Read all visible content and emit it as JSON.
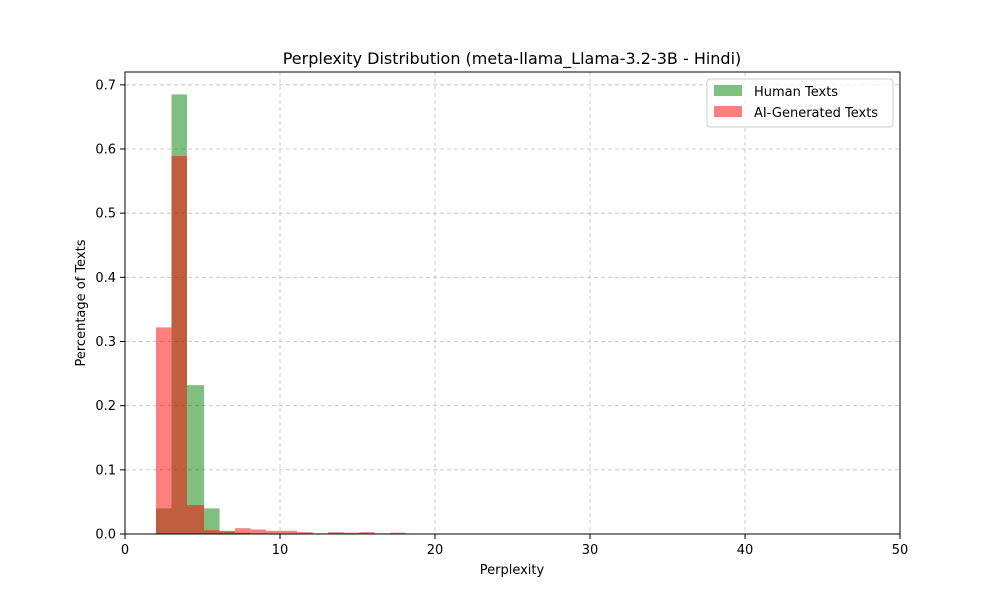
{
  "chart_data": {
    "type": "bar",
    "title": "Perplexity Distribution (meta-llama_Llama-3.2-3B - Hindi)",
    "xlabel": "Perplexity",
    "ylabel": "Percentage of Texts",
    "xlim": [
      0,
      50
    ],
    "ylim": [
      0,
      0.72
    ],
    "xticks": [
      0,
      10,
      20,
      30,
      40,
      50
    ],
    "yticks": [
      0.0,
      0.1,
      0.2,
      0.3,
      0.4,
      0.5,
      0.6,
      0.7
    ],
    "xtick_labels": [
      "0",
      "10",
      "20",
      "30",
      "40",
      "50"
    ],
    "ytick_labels": [
      "0.0",
      "0.1",
      "0.2",
      "0.3",
      "0.4",
      "0.5",
      "0.6",
      "0.7"
    ],
    "grid": true,
    "legend_position": "top-right",
    "series": [
      {
        "name": "Human Texts",
        "color": "#008000",
        "opacity": 0.5,
        "bins": [
          {
            "x0": 2.0,
            "x1": 3.0,
            "value": 0.04
          },
          {
            "x0": 3.0,
            "x1": 4.0,
            "value": 0.685
          },
          {
            "x0": 4.0,
            "x1": 5.1,
            "value": 0.232
          },
          {
            "x0": 5.1,
            "x1": 6.1,
            "value": 0.04
          },
          {
            "x0": 6.1,
            "x1": 7.1,
            "value": 0.005
          },
          {
            "x0": 7.1,
            "x1": 8.1,
            "value": 0.002
          }
        ]
      },
      {
        "name": "AI-Generated Texts",
        "color": "#ff0000",
        "opacity": 0.5,
        "bins": [
          {
            "x0": 2.0,
            "x1": 3.0,
            "value": 0.322
          },
          {
            "x0": 3.0,
            "x1": 4.0,
            "value": 0.589
          },
          {
            "x0": 4.0,
            "x1": 5.1,
            "value": 0.045
          },
          {
            "x0": 5.1,
            "x1": 6.1,
            "value": 0.006
          },
          {
            "x0": 6.1,
            "x1": 7.1,
            "value": 0.004
          },
          {
            "x0": 7.1,
            "x1": 8.1,
            "value": 0.009
          },
          {
            "x0": 8.1,
            "x1": 9.1,
            "value": 0.007
          },
          {
            "x0": 9.1,
            "x1": 10.1,
            "value": 0.005
          },
          {
            "x0": 10.1,
            "x1": 11.1,
            "value": 0.005
          },
          {
            "x0": 11.1,
            "x1": 12.1,
            "value": 0.003
          },
          {
            "x0": 12.1,
            "x1": 13.1,
            "value": 0.001
          },
          {
            "x0": 13.1,
            "x1": 14.1,
            "value": 0.003
          },
          {
            "x0": 14.1,
            "x1": 15.1,
            "value": 0.002
          },
          {
            "x0": 15.1,
            "x1": 16.1,
            "value": 0.003
          },
          {
            "x0": 16.1,
            "x1": 17.1,
            "value": 0.001
          },
          {
            "x0": 17.1,
            "x1": 18.1,
            "value": 0.002
          }
        ]
      }
    ]
  }
}
